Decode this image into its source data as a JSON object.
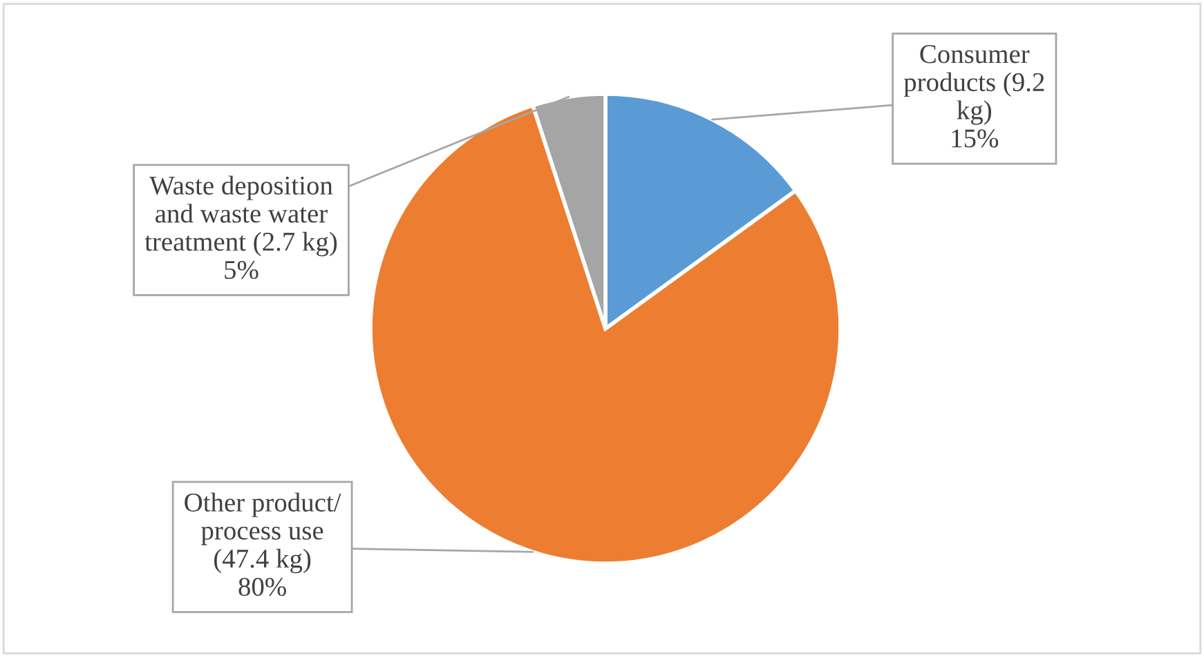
{
  "chart_data": {
    "type": "pie",
    "categories": [
      "Consumer products (9.2 kg)",
      "Other product/ process use (47.4 kg)",
      "Waste deposition and waste water treatment (2.7 kg)"
    ],
    "values": [
      15,
      80,
      5
    ],
    "value_labels": [
      "15%",
      "80%",
      "5%"
    ],
    "colors": [
      "#5b9bd5",
      "#ed7d31",
      "#a5a5a5"
    ]
  }
}
